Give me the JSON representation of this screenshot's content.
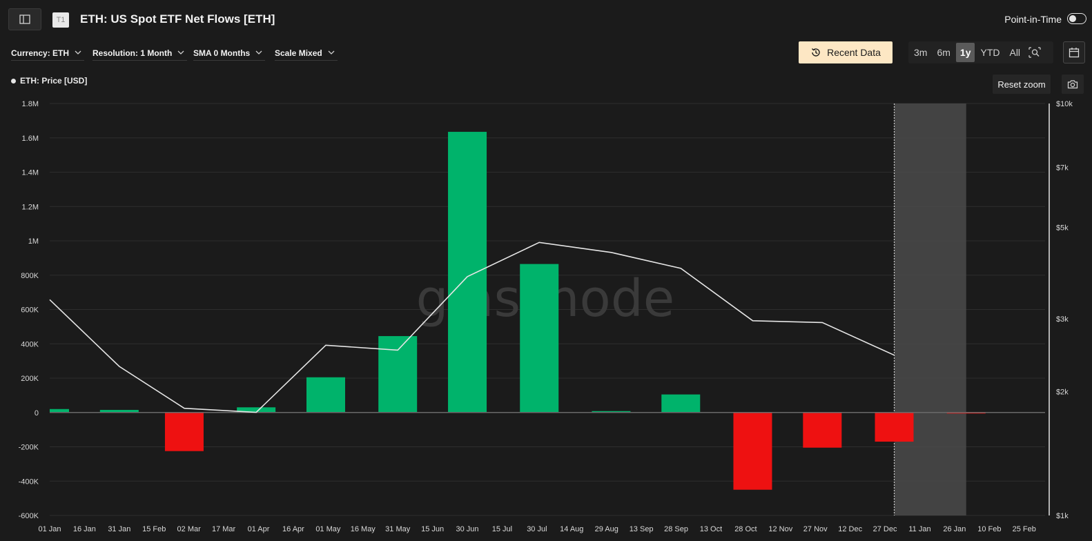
{
  "header": {
    "tier_badge": "T1",
    "title": "ETH: US Spot ETF Net Flows [ETH]",
    "point_in_time_label": "Point-in-Time"
  },
  "controls": {
    "currency": "Currency: ETH",
    "resolution": "Resolution: 1 Month",
    "sma": "SMA 0 Months",
    "scale": "Scale Mixed",
    "recent_data": "Recent Data",
    "ranges": [
      "3m",
      "6m",
      "1y",
      "YTD",
      "All"
    ],
    "active_range": "1y",
    "reset_zoom": "Reset zoom"
  },
  "legend": {
    "price_label": "ETH: Price [USD]"
  },
  "icons": {
    "sidebar": "sidebar-toggle-icon",
    "history": "history-icon",
    "zoom": "zoom-select-icon",
    "calendar": "calendar-icon",
    "camera": "camera-icon",
    "chevron": "chevron-down-icon"
  },
  "colors": {
    "inflow": "#00b36b",
    "outflow": "#ee1111",
    "price_line": "#e6e6e6",
    "highlight": "#4a4a4a",
    "recent_data_bg": "#fde7c4"
  },
  "chart_data": {
    "type": "bar",
    "watermark": "glassnode",
    "x_tick_labels": [
      "01 Jan",
      "16 Jan",
      "31 Jan",
      "15 Feb",
      "02 Mar",
      "17 Mar",
      "01 Apr",
      "16 Apr",
      "01 May",
      "16 May",
      "31 May",
      "15 Jun",
      "30 Jun",
      "15 Jul",
      "30 Jul",
      "14 Aug",
      "29 Aug",
      "13 Sep",
      "28 Sep",
      "13 Oct",
      "28 Oct",
      "12 Nov",
      "27 Nov",
      "12 Dec",
      "27 Dec",
      "11 Jan",
      "26 Jan",
      "10 Feb",
      "25 Feb"
    ],
    "y_left_ticks": [
      "1.8M",
      "1.6M",
      "1.4M",
      "1.2M",
      "1M",
      "800K",
      "600K",
      "400K",
      "200K",
      "0",
      "-200K",
      "-400K",
      "-600K"
    ],
    "y_left_range": [
      -600000,
      1800000
    ],
    "y_right_ticks": [
      "$10k",
      "$7k",
      "$5k",
      "$3k",
      "$2k",
      "$1k"
    ],
    "y_right_tick_values": [
      10000,
      7000,
      5000,
      3000,
      2000,
      1000
    ],
    "y_right_range": [
      1000,
      10000
    ],
    "y_right_scale": "log",
    "highlight_range": [
      "2025-12-31",
      "2026-01-31"
    ],
    "bars": [
      {
        "date": "2025-01-01",
        "value": 20000
      },
      {
        "date": "2025-01-31",
        "value": 15000
      },
      {
        "date": "2025-02-28",
        "value": -225000
      },
      {
        "date": "2025-03-31",
        "value": 30000
      },
      {
        "date": "2025-04-30",
        "value": 205000
      },
      {
        "date": "2025-05-31",
        "value": 445000
      },
      {
        "date": "2025-06-30",
        "value": 1635000
      },
      {
        "date": "2025-07-31",
        "value": 865000
      },
      {
        "date": "2025-08-31",
        "value": 8000
      },
      {
        "date": "2025-09-30",
        "value": 105000
      },
      {
        "date": "2025-10-31",
        "value": -450000
      },
      {
        "date": "2025-11-30",
        "value": -205000
      },
      {
        "date": "2025-12-31",
        "value": -170000
      },
      {
        "date": "2026-01-31",
        "value": -3000
      }
    ],
    "price_series": {
      "name": "ETH: Price [USD]",
      "points": [
        {
          "date": "2025-01-01",
          "value": 3340
        },
        {
          "date": "2025-01-31",
          "value": 2300
        },
        {
          "date": "2025-02-28",
          "value": 1820
        },
        {
          "date": "2025-03-31",
          "value": 1780
        },
        {
          "date": "2025-04-30",
          "value": 2590
        },
        {
          "date": "2025-05-31",
          "value": 2520
        },
        {
          "date": "2025-06-30",
          "value": 3800
        },
        {
          "date": "2025-07-31",
          "value": 4600
        },
        {
          "date": "2025-08-31",
          "value": 4350
        },
        {
          "date": "2025-09-30",
          "value": 3980
        },
        {
          "date": "2025-10-31",
          "value": 2970
        },
        {
          "date": "2025-11-30",
          "value": 2940
        },
        {
          "date": "2025-12-31",
          "value": 2450
        }
      ]
    }
  }
}
